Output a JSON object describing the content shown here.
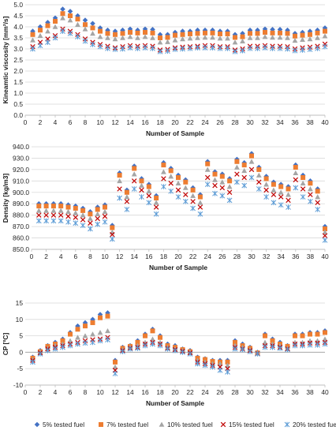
{
  "colors": {
    "s5": "#4472c4",
    "s7": "#ed7d31",
    "s10": "#a5a5a5",
    "s15": "#c00000",
    "s20": "#5b9bd5",
    "grid": "#d9d9d9",
    "axis": "#bfbfbf"
  },
  "legend": {
    "position": "bottom",
    "items": [
      {
        "label": "5% tested fuel",
        "marker": "diamond",
        "color_key": "s5"
      },
      {
        "label": "7% tested fuel",
        "marker": "square",
        "color_key": "s7"
      },
      {
        "label": "10% tested fuel",
        "marker": "triangle",
        "color_key": "s10"
      },
      {
        "label": "15% tested fuel",
        "marker": "x",
        "color_key": "s15"
      },
      {
        "label": "20% tested fuel",
        "marker": "star",
        "color_key": "s20"
      }
    ]
  },
  "chart_data": [
    {
      "type": "scatter",
      "title": "",
      "xlabel": "Number of Sample",
      "ylabel": "Kineamtic viscosity [mm²/s]",
      "xlim": [
        0,
        40
      ],
      "ylim": [
        0.0,
        5.0
      ],
      "yticks": [
        0.0,
        0.5,
        1.0,
        1.5,
        2.0,
        2.5,
        3.0,
        3.5,
        4.0,
        4.5,
        5.0
      ],
      "ytick_labels": [
        "0.0",
        "0.5",
        "1.0",
        "1.5",
        "2.0",
        "2.5",
        "3.0",
        "3.5",
        "4.0",
        "4.5",
        "5.0"
      ],
      "xticks": [
        0,
        2,
        4,
        6,
        8,
        10,
        12,
        14,
        16,
        18,
        20,
        22,
        24,
        26,
        28,
        30,
        32,
        34,
        36,
        38,
        40
      ],
      "grid": true,
      "x": [
        1,
        2,
        3,
        4,
        5,
        6,
        7,
        8,
        9,
        10,
        11,
        12,
        13,
        14,
        15,
        16,
        17,
        18,
        19,
        20,
        21,
        22,
        23,
        24,
        25,
        26,
        27,
        28,
        29,
        30,
        31,
        32,
        33,
        34,
        35,
        36,
        37,
        38,
        39,
        40
      ],
      "series": [
        {
          "name": "5% tested fuel",
          "values": [
            3.8,
            4.0,
            4.2,
            4.4,
            4.8,
            4.7,
            4.5,
            4.3,
            4.15,
            3.95,
            3.85,
            3.8,
            3.85,
            3.9,
            3.85,
            3.9,
            3.88,
            3.65,
            3.65,
            3.75,
            3.8,
            3.8,
            3.85,
            3.85,
            3.85,
            3.8,
            3.8,
            3.65,
            3.7,
            3.85,
            3.85,
            3.9,
            3.88,
            3.88,
            3.85,
            3.7,
            3.75,
            3.8,
            3.85,
            3.95
          ]
        },
        {
          "name": "7% tested fuel",
          "values": [
            3.65,
            3.85,
            4.05,
            4.25,
            4.6,
            4.5,
            4.35,
            4.1,
            3.95,
            3.8,
            3.7,
            3.65,
            3.7,
            3.75,
            3.72,
            3.75,
            3.72,
            3.5,
            3.52,
            3.62,
            3.65,
            3.68,
            3.7,
            3.72,
            3.72,
            3.68,
            3.68,
            3.52,
            3.55,
            3.7,
            3.7,
            3.75,
            3.72,
            3.72,
            3.7,
            3.58,
            3.62,
            3.65,
            3.72,
            3.8
          ]
        },
        {
          "name": "10% tested fuel",
          "values": [
            3.4,
            3.6,
            3.8,
            4.0,
            4.4,
            4.3,
            4.1,
            3.9,
            3.7,
            3.55,
            3.5,
            3.45,
            3.5,
            3.55,
            3.5,
            3.55,
            3.5,
            3.3,
            3.32,
            3.4,
            3.45,
            3.48,
            3.5,
            3.52,
            3.52,
            3.48,
            3.48,
            3.3,
            3.35,
            3.5,
            3.5,
            3.55,
            3.52,
            3.52,
            3.5,
            3.38,
            3.42,
            3.45,
            3.5,
            3.58
          ]
        },
        {
          "name": "15% tested fuel",
          "values": [
            3.1,
            3.3,
            3.45,
            3.6,
            3.9,
            3.8,
            3.65,
            3.45,
            3.3,
            3.2,
            3.12,
            3.05,
            3.1,
            3.15,
            3.12,
            3.15,
            3.12,
            2.95,
            2.98,
            3.05,
            3.08,
            3.1,
            3.12,
            3.15,
            3.15,
            3.1,
            3.1,
            2.95,
            3.0,
            3.12,
            3.12,
            3.15,
            3.12,
            3.12,
            3.1,
            3.0,
            3.05,
            3.08,
            3.12,
            3.22
          ]
        },
        {
          "name": "20% tested fuel",
          "values": [
            3.0,
            3.15,
            3.3,
            3.5,
            3.8,
            3.7,
            3.55,
            3.35,
            3.2,
            3.1,
            3.02,
            2.98,
            3.0,
            3.05,
            3.02,
            3.05,
            3.02,
            2.88,
            2.9,
            2.98,
            3.0,
            3.02,
            3.05,
            3.05,
            3.05,
            3.02,
            3.02,
            2.88,
            2.92,
            3.02,
            3.02,
            3.05,
            3.02,
            3.02,
            3.0,
            2.92,
            2.95,
            2.98,
            3.02,
            3.1
          ]
        }
      ]
    },
    {
      "type": "scatter",
      "title": "",
      "xlabel": "Number of Sample",
      "ylabel": "Density [kg/m3]",
      "xlim": [
        0,
        40
      ],
      "ylim": [
        850.0,
        940.0
      ],
      "yticks": [
        850.0,
        860.0,
        870.0,
        880.0,
        890.0,
        900.0,
        910.0,
        920.0,
        930.0,
        940.0
      ],
      "ytick_labels": [
        "850.0",
        "860.0",
        "870.0",
        "880.0",
        "890.0",
        "900.0",
        "910.0",
        "920.0",
        "930.0",
        "940.0"
      ],
      "xticks": [
        0,
        2,
        4,
        6,
        8,
        10,
        12,
        14,
        16,
        18,
        20,
        22,
        24,
        26,
        28,
        30,
        32,
        34,
        36,
        38,
        40
      ],
      "grid": true,
      "x": [
        1,
        2,
        3,
        4,
        5,
        6,
        7,
        8,
        9,
        10,
        11,
        12,
        13,
        14,
        15,
        16,
        17,
        18,
        19,
        20,
        21,
        22,
        23,
        24,
        25,
        26,
        27,
        28,
        29,
        30,
        31,
        32,
        33,
        34,
        35,
        36,
        37,
        38,
        39,
        40
      ],
      "series": [
        {
          "name": "5% tested fuel",
          "values": [
            890,
            890,
            890,
            890,
            889,
            888,
            886,
            883,
            887,
            889,
            871,
            917,
            902,
            923,
            912,
            907,
            897,
            926,
            921,
            915,
            911,
            904,
            898,
            927,
            918,
            916,
            912,
            929,
            926,
            934,
            922,
            914,
            909,
            907,
            905,
            924,
            915,
            910,
            903,
            870
          ]
        },
        {
          "name": "7% tested fuel",
          "values": [
            888,
            888,
            888,
            888,
            887,
            886,
            884,
            881,
            885,
            887,
            869,
            915,
            900,
            921,
            910,
            905,
            895,
            924,
            919,
            913,
            909,
            902,
            896,
            925,
            916,
            914,
            910,
            927,
            924,
            932,
            920,
            912,
            907,
            905,
            903,
            922,
            913,
            908,
            901,
            868
          ]
        },
        {
          "name": "10% tested fuel",
          "values": [
            884,
            884,
            884,
            884,
            883,
            882,
            880,
            877,
            881,
            883,
            865,
            910,
            896,
            916,
            906,
            901,
            891,
            918,
            914,
            908,
            904,
            897,
            891,
            920,
            911,
            909,
            905,
            922,
            919,
            927,
            915,
            907,
            902,
            900,
            898,
            917,
            908,
            903,
            896,
            865
          ]
        },
        {
          "name": "15% tested fuel",
          "values": [
            880,
            880,
            880,
            880,
            879,
            878,
            876,
            873,
            877,
            879,
            863,
            903,
            892,
            910,
            902,
            897,
            887,
            912,
            908,
            902,
            898,
            892,
            887,
            913,
            906,
            904,
            900,
            916,
            913,
            920,
            909,
            902,
            898,
            896,
            893,
            911,
            903,
            898,
            891,
            862
          ]
        },
        {
          "name": "20% tested fuel",
          "values": [
            875,
            875,
            875,
            875,
            874,
            873,
            871,
            868,
            872,
            874,
            859,
            895,
            885,
            903,
            896,
            891,
            881,
            905,
            901,
            896,
            892,
            886,
            881,
            907,
            899,
            897,
            893,
            909,
            906,
            913,
            903,
            896,
            891,
            889,
            887,
            904,
            896,
            892,
            885,
            858
          ]
        }
      ]
    },
    {
      "type": "scatter",
      "title": "",
      "xlabel": "Number of Sample",
      "ylabel": "CP [ºC]",
      "xlim": [
        0,
        40
      ],
      "ylim": [
        -10,
        15
      ],
      "yticks": [
        -10,
        -5,
        0,
        5,
        10,
        15
      ],
      "ytick_labels": [
        "-10",
        "-5",
        "0",
        "5",
        "10",
        "15"
      ],
      "xticks": [
        0,
        2,
        4,
        6,
        8,
        10,
        12,
        14,
        16,
        18,
        20,
        22,
        24,
        26,
        28,
        30,
        32,
        34,
        36,
        38,
        40
      ],
      "grid": true,
      "x": [
        1,
        2,
        3,
        4,
        5,
        6,
        7,
        8,
        9,
        10,
        11,
        12,
        13,
        14,
        15,
        16,
        17,
        18,
        19,
        20,
        21,
        22,
        23,
        24,
        25,
        26,
        27,
        28,
        29,
        30,
        31,
        32,
        33,
        34,
        35,
        36,
        37,
        38,
        39,
        40
      ],
      "series": [
        {
          "name": "5% tested fuel",
          "values": [
            -1.5,
            0.5,
            2.0,
            3.0,
            4.0,
            6.0,
            8.0,
            9.0,
            10.0,
            11.5,
            12.0,
            -2.5,
            1.5,
            2.0,
            3.5,
            5.5,
            7.0,
            5.0,
            2.5,
            2.0,
            1.0,
            0.5,
            -1.5,
            -2.0,
            -2.5,
            -2.5,
            -2.5,
            3.5,
            2.5,
            1.5,
            0.0,
            5.5,
            4.0,
            3.0,
            2.0,
            5.5,
            5.5,
            6.0,
            6.0,
            6.5
          ]
        },
        {
          "name": "7% tested fuel",
          "values": [
            -1.8,
            0.2,
            1.8,
            2.5,
            3.5,
            5.5,
            7.0,
            8.0,
            9.0,
            10.5,
            11.0,
            -3.0,
            1.2,
            1.8,
            3.0,
            5.0,
            6.5,
            4.5,
            2.0,
            1.5,
            0.8,
            0.2,
            -1.8,
            -2.2,
            -2.8,
            -3.0,
            -3.0,
            3.0,
            2.0,
            1.2,
            -0.2,
            5.0,
            3.5,
            2.5,
            1.8,
            5.0,
            5.0,
            5.5,
            5.5,
            6.0
          ]
        },
        {
          "name": "10% tested fuel",
          "values": [
            -2.2,
            0.0,
            1.2,
            2.0,
            2.5,
            3.5,
            4.5,
            5.0,
            5.5,
            6.0,
            6.5,
            -4.5,
            0.8,
            1.5,
            2.0,
            3.0,
            4.0,
            3.0,
            1.5,
            1.0,
            0.5,
            0.0,
            -2.5,
            -3.0,
            -3.5,
            -3.5,
            -4.0,
            2.0,
            1.5,
            0.8,
            -0.3,
            3.0,
            2.5,
            2.0,
            1.2,
            3.0,
            3.0,
            3.5,
            3.5,
            4.0
          ]
        },
        {
          "name": "15% tested fuel",
          "values": [
            -2.5,
            -0.2,
            1.0,
            1.5,
            2.0,
            2.5,
            3.0,
            3.5,
            3.8,
            4.0,
            4.5,
            -5.5,
            0.5,
            1.2,
            1.5,
            2.5,
            3.0,
            2.5,
            1.2,
            0.8,
            0.3,
            -0.2,
            -3.0,
            -3.5,
            -4.0,
            -4.5,
            -5.0,
            1.5,
            1.0,
            0.5,
            -0.4,
            2.0,
            2.0,
            1.5,
            1.0,
            2.5,
            2.5,
            2.8,
            2.8,
            3.0
          ]
        },
        {
          "name": "20% tested fuel",
          "values": [
            -3.0,
            -0.5,
            0.5,
            1.0,
            1.5,
            2.0,
            2.5,
            2.8,
            3.0,
            3.5,
            3.8,
            -6.5,
            0.2,
            1.0,
            1.2,
            2.0,
            2.5,
            2.0,
            1.0,
            0.5,
            0.0,
            -0.5,
            -3.5,
            -4.0,
            -4.5,
            -5.5,
            -6.0,
            1.0,
            0.8,
            0.2,
            -0.5,
            1.5,
            1.5,
            1.2,
            0.8,
            2.0,
            2.0,
            2.2,
            2.2,
            2.5
          ]
        }
      ]
    }
  ]
}
